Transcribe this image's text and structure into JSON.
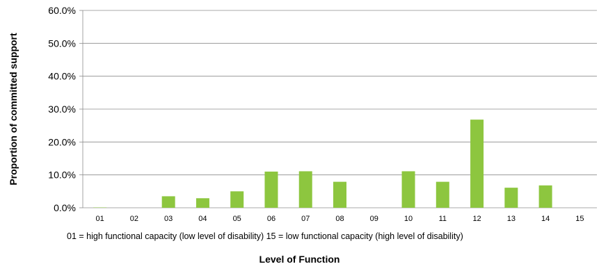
{
  "chart_data": {
    "type": "bar",
    "categories": [
      "01",
      "02",
      "03",
      "04",
      "05",
      "06",
      "07",
      "08",
      "09",
      "10",
      "11",
      "12",
      "13",
      "14",
      "15"
    ],
    "values": [
      0.1,
      0.0,
      3.5,
      2.9,
      5.0,
      11.0,
      11.1,
      7.9,
      0.0,
      11.1,
      7.9,
      26.8,
      6.1,
      6.8,
      0.0
    ],
    "title": "",
    "xlabel": "Level of Function",
    "ylabel": "Proportion of committed support",
    "ylim": [
      0,
      60
    ],
    "yticks": [
      "0.0%",
      "10.0%",
      "20.0%",
      "30.0%",
      "40.0%",
      "50.0%",
      "60.0%"
    ],
    "grid": true,
    "legend": "none",
    "bar_color": "#8dc63f",
    "note": "01 = high functional capacity (low level of disability)  15 = low functional capacity (high level of disability)"
  }
}
